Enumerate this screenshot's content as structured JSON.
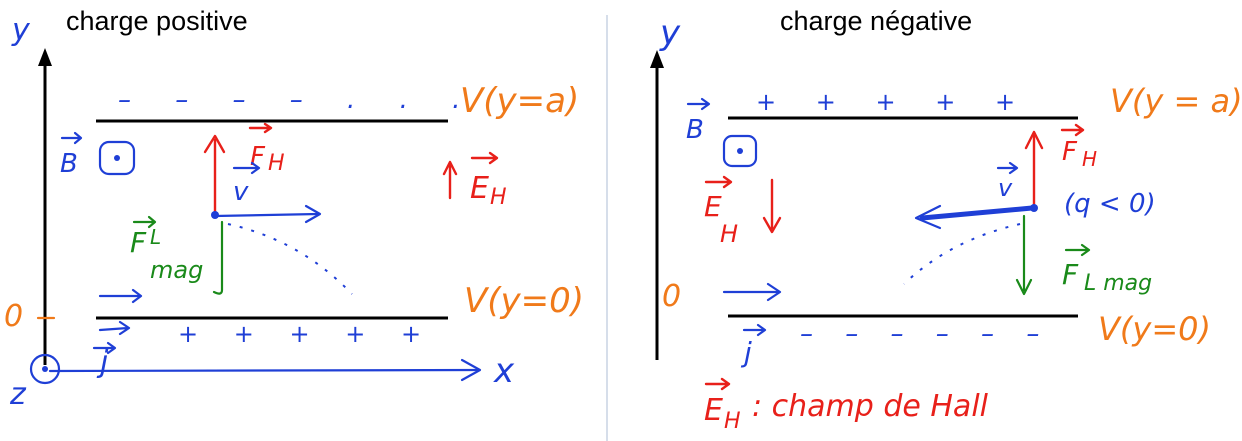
{
  "left": {
    "title": "charge positive",
    "axis_y": "y",
    "axis_x": "x",
    "axis_z": "z",
    "origin_label": "0",
    "B_label": "B",
    "FH_label": "F",
    "FH_sub": "H",
    "v_label": "v",
    "EH_label": "E",
    "EH_sub": "H",
    "FL_label": "F",
    "FL_sub": "L",
    "FL_subsub": "mag",
    "j_label": "j",
    "top_plate_charges": "– – – – . . .",
    "bottom_plate_charges": "+  +  +  +  +",
    "V_top": "V(y=a)",
    "V_bottom": "V(y=0)"
  },
  "right": {
    "title": "charge négative",
    "axis_y": "y",
    "origin_label": "0",
    "B_label": "B",
    "FH_label": "F",
    "FH_sub": "H",
    "v_label": "v",
    "q_note": "(q < 0)",
    "EH_label": "E",
    "EH_sub": "H",
    "FL_label": "F",
    "FL_sub": "L mag",
    "j_label": "j",
    "top_plate_charges": "+  +  +  +  +",
    "bottom_plate_charges": "– – – – – –",
    "V_top": "V(y = a)",
    "V_bottom": "V(y=0)",
    "caption": "E",
    "caption_sub": "H",
    "caption_text": ": champ de Hall"
  },
  "colors": {
    "blue": "#1f3fd6",
    "red": "#e8201a",
    "green": "#1a8a1a",
    "orange": "#f07a1a",
    "black": "#000000"
  }
}
